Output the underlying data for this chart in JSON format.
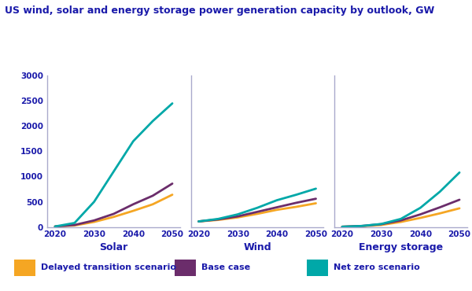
{
  "title": "US wind, solar and energy storage power generation capacity by outlook, GW",
  "title_color": "#1a1aaa",
  "background_color": "#ffffff",
  "years": [
    2020,
    2025,
    2030,
    2035,
    2040,
    2045,
    2050
  ],
  "panels": [
    {
      "label": "Solar",
      "delayed": [
        10,
        30,
        100,
        200,
        320,
        450,
        640
      ],
      "base": [
        10,
        40,
        130,
        260,
        450,
        620,
        860
      ],
      "net_zero": [
        10,
        80,
        500,
        1100,
        1700,
        2100,
        2450
      ]
    },
    {
      "label": "Wind",
      "delayed": [
        110,
        140,
        190,
        260,
        340,
        400,
        470
      ],
      "base": [
        110,
        150,
        210,
        300,
        390,
        480,
        560
      ],
      "net_zero": [
        110,
        160,
        250,
        380,
        530,
        640,
        760
      ]
    },
    {
      "label": "Energy storage",
      "delayed": [
        5,
        15,
        40,
        100,
        180,
        270,
        370
      ],
      "base": [
        5,
        20,
        55,
        130,
        250,
        390,
        540
      ],
      "net_zero": [
        5,
        20,
        60,
        160,
        380,
        700,
        1080
      ]
    }
  ],
  "scenarios": [
    {
      "label": "Delayed transition scenario",
      "color": "#f5a623"
    },
    {
      "label": "Base case",
      "color": "#6b2d6b"
    },
    {
      "label": "Net zero scenario",
      "color": "#00a8a8"
    }
  ],
  "ylim": [
    0,
    3000
  ],
  "yticks": [
    0,
    500,
    1000,
    1500,
    2000,
    2500,
    3000
  ],
  "xticks": [
    2020,
    2030,
    2040,
    2050
  ],
  "axis_color": "#aaaacc",
  "tick_color": "#1a1aaa",
  "label_color": "#1a1aaa",
  "line_width": 2.0,
  "figsize": [
    6.0,
    3.7
  ],
  "dpi": 100
}
